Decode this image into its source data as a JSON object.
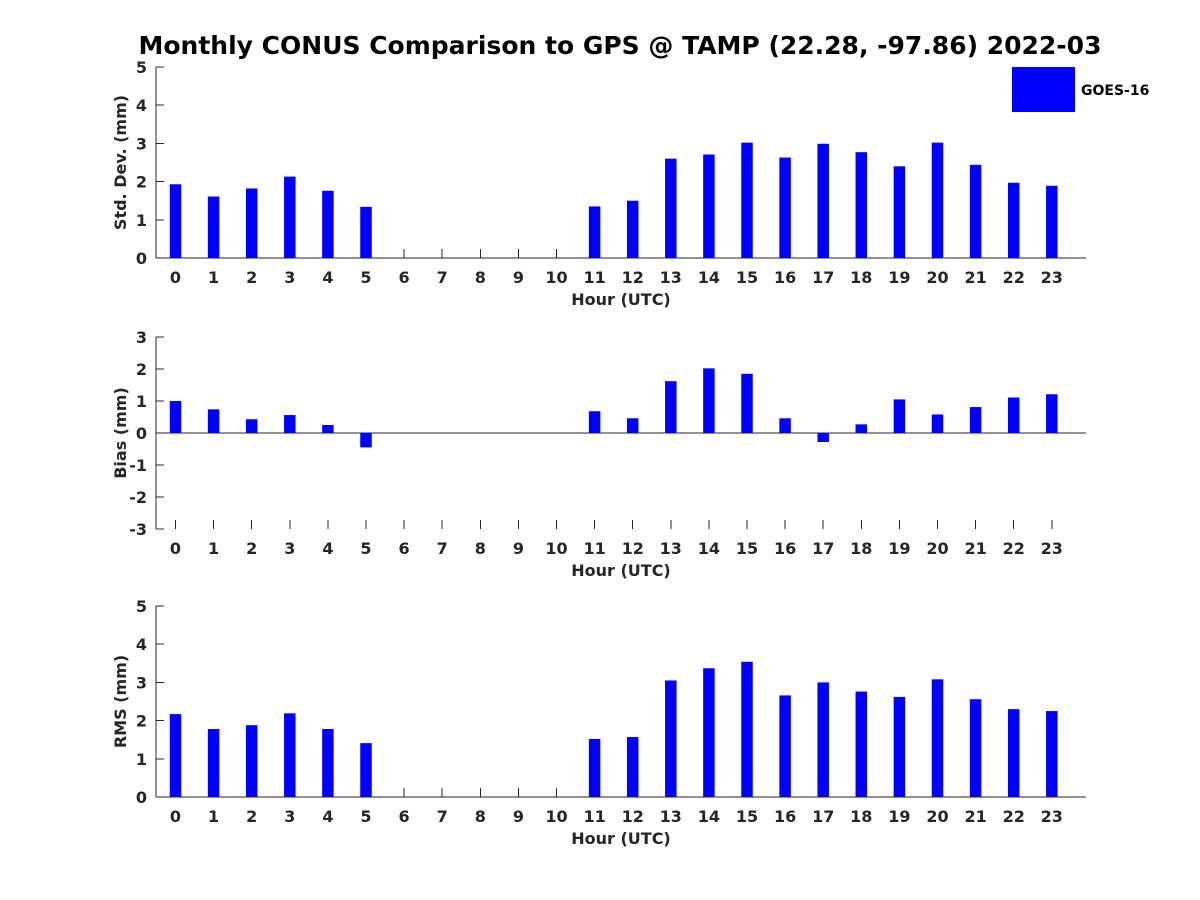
{
  "title": "Monthly CONUS Comparison to GPS @ TAMP (22.28, -97.86) 2022-03",
  "legend": {
    "label": "GOES-16",
    "color": "#0000ff"
  },
  "chart_data": [
    {
      "type": "bar",
      "ylabel": "Std. Dev. (mm)",
      "xlabel": "Hour (UTC)",
      "ylim": [
        0,
        5
      ],
      "yticks": [
        0,
        1,
        2,
        3,
        4,
        5
      ],
      "categories": [
        "0",
        "1",
        "2",
        "3",
        "4",
        "5",
        "6",
        "7",
        "8",
        "9",
        "10",
        "11",
        "12",
        "13",
        "14",
        "15",
        "16",
        "17",
        "18",
        "19",
        "20",
        "21",
        "22",
        "23"
      ],
      "series": [
        {
          "name": "GOES-16",
          "values": [
            1.93,
            1.61,
            1.82,
            2.13,
            1.76,
            1.34,
            null,
            null,
            null,
            null,
            null,
            1.35,
            1.5,
            2.6,
            2.71,
            3.02,
            2.63,
            2.99,
            2.77,
            2.4,
            3.02,
            2.44,
            1.97,
            1.89
          ]
        }
      ]
    },
    {
      "type": "bar",
      "ylabel": "Bias (mm)",
      "xlabel": "Hour (UTC)",
      "ylim": [
        -3,
        3
      ],
      "yticks": [
        -3,
        -2,
        -1,
        0,
        1,
        2,
        3
      ],
      "categories": [
        "0",
        "1",
        "2",
        "3",
        "4",
        "5",
        "6",
        "7",
        "8",
        "9",
        "10",
        "11",
        "12",
        "13",
        "14",
        "15",
        "16",
        "17",
        "18",
        "19",
        "20",
        "21",
        "22",
        "23"
      ],
      "series": [
        {
          "name": "GOES-16",
          "values": [
            1.0,
            0.74,
            0.43,
            0.56,
            0.25,
            -0.45,
            null,
            null,
            null,
            null,
            null,
            0.68,
            0.46,
            1.62,
            2.02,
            1.85,
            0.46,
            -0.28,
            0.27,
            1.05,
            0.58,
            0.81,
            1.11,
            1.21
          ]
        }
      ]
    },
    {
      "type": "bar",
      "ylabel": "RMS (mm)",
      "xlabel": "Hour (UTC)",
      "ylim": [
        0,
        5
      ],
      "yticks": [
        0,
        1,
        2,
        3,
        4,
        5
      ],
      "categories": [
        "0",
        "1",
        "2",
        "3",
        "4",
        "5",
        "6",
        "7",
        "8",
        "9",
        "10",
        "11",
        "12",
        "13",
        "14",
        "15",
        "16",
        "17",
        "18",
        "19",
        "20",
        "21",
        "22",
        "23"
      ],
      "series": [
        {
          "name": "GOES-16",
          "values": [
            2.17,
            1.78,
            1.88,
            2.19,
            1.78,
            1.41,
            null,
            null,
            null,
            null,
            null,
            1.52,
            1.57,
            3.05,
            3.37,
            3.54,
            2.66,
            3.0,
            2.76,
            2.62,
            3.08,
            2.56,
            2.3,
            2.25
          ]
        }
      ]
    }
  ]
}
